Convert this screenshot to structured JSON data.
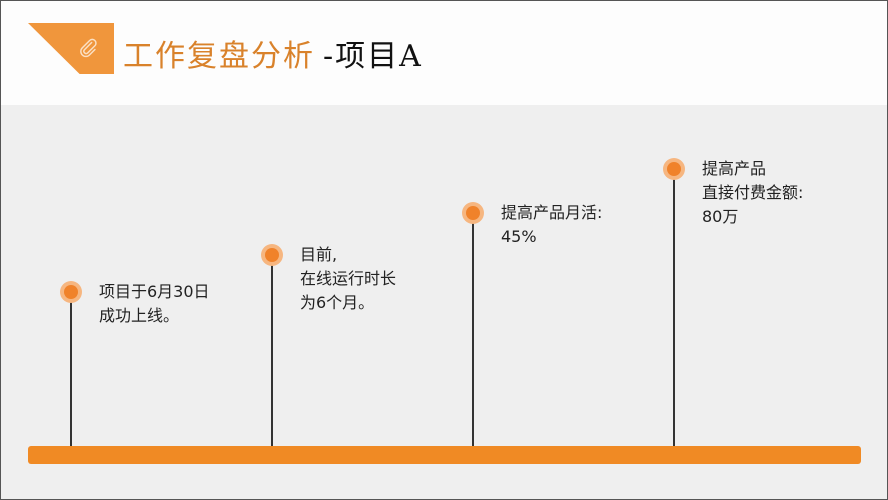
{
  "title": {
    "main": "工作复盘分析",
    "sub": "-项目A"
  },
  "colors": {
    "accent": "#f08a24",
    "title": "#d9822b"
  },
  "header_icon": "paperclip-icon",
  "milestones": [
    {
      "lines": [
        "项目于6月30日",
        "成功上线。"
      ]
    },
    {
      "lines": [
        "目前,",
        "在线运行时长",
        "为6个月。"
      ]
    },
    {
      "lines": [
        "提高产品月活:",
        "45%"
      ]
    },
    {
      "lines": [
        "提高产品",
        "直接付费金额:",
        "80万"
      ]
    }
  ]
}
